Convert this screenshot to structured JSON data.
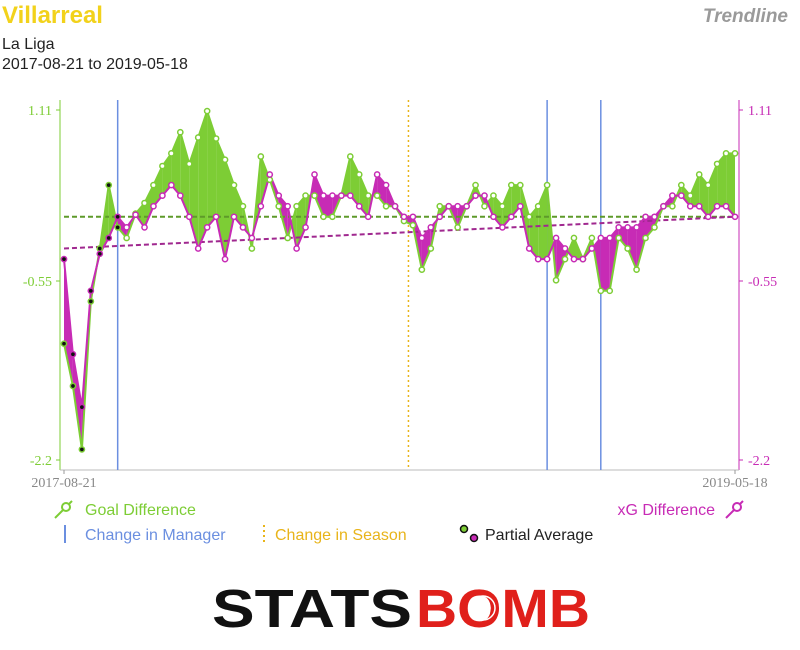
{
  "header": {
    "team": "Villarreal",
    "competition": "La Liga",
    "date_range": "2017-08-21 to 2019-05-18",
    "mode": "Trendline"
  },
  "colors": {
    "goal_diff": "#7dcd35",
    "xg_diff": "#c72bb5",
    "manager": "#6b8fe0",
    "season": "#e8b41a",
    "title": "#f2d21b",
    "logo_red": "#e0201b"
  },
  "legend": {
    "goal_difference": "Goal Difference",
    "xg_difference": "xG Difference",
    "change_manager": "Change in Manager",
    "change_season": "Change in Season",
    "partial_average": "Partial Average"
  },
  "logo": {
    "part1": "STATS",
    "part2": "BOMB"
  },
  "chart_data": {
    "type": "line",
    "ylim": [
      -2.2,
      1.11
    ],
    "y_ticks": [
      "1.11",
      "-0.55",
      "-2.2"
    ],
    "y_tick_values": [
      1.11,
      -0.55,
      -2.2
    ],
    "x_labels": [
      "2017-08-21",
      "2019-05-18"
    ],
    "match_count": 76,
    "partial_average_count": 7,
    "manager_change_indices": [
      6,
      54,
      60
    ],
    "season_change_index": 38.5,
    "series": [
      {
        "name": "Goal Difference",
        "values": [
          -1.1,
          -1.5,
          -2.1,
          -0.7,
          -0.2,
          0.4,
          0.0,
          -0.1,
          0.13,
          0.23,
          0.4,
          0.58,
          0.7,
          0.9,
          0.6,
          0.85,
          1.1,
          0.84,
          0.64,
          0.4,
          0.2,
          -0.2,
          0.67,
          0.45,
          0.2,
          -0.1,
          0.2,
          0.3,
          0.3,
          0.1,
          0.1,
          0.3,
          0.67,
          0.5,
          0.3,
          0.3,
          0.2,
          0.2,
          0.06,
          0.02,
          -0.4,
          -0.2,
          0.2,
          0.2,
          0.0,
          0.2,
          0.4,
          0.2,
          0.3,
          0.2,
          0.4,
          0.4,
          0.1,
          0.2,
          0.4,
          -0.5,
          -0.3,
          -0.1,
          -0.3,
          -0.1,
          -0.6,
          -0.6,
          -0.1,
          -0.2,
          -0.4,
          -0.1,
          0.0,
          0.2,
          0.2,
          0.4,
          0.3,
          0.5,
          0.4,
          0.6,
          0.7,
          0.7
        ]
      },
      {
        "name": "xG Difference",
        "values": [
          -0.3,
          -1.2,
          -1.7,
          -0.6,
          -0.25,
          -0.1,
          0.1,
          0.0,
          0.12,
          0.0,
          0.2,
          0.3,
          0.4,
          0.3,
          0.1,
          -0.2,
          0.0,
          0.1,
          -0.3,
          0.1,
          0.0,
          -0.1,
          0.2,
          0.5,
          0.3,
          0.2,
          -0.2,
          0.0,
          0.5,
          0.3,
          0.3,
          0.3,
          0.3,
          0.2,
          0.1,
          0.5,
          0.4,
          0.2,
          0.1,
          0.1,
          -0.1,
          0.0,
          0.1,
          0.2,
          0.2,
          0.2,
          0.3,
          0.3,
          0.1,
          0.0,
          0.1,
          0.2,
          -0.2,
          -0.3,
          -0.3,
          -0.1,
          -0.2,
          -0.3,
          -0.3,
          -0.2,
          -0.1,
          -0.1,
          0.0,
          0.0,
          0.0,
          0.1,
          0.1,
          0.2,
          0.3,
          0.3,
          0.2,
          0.2,
          0.1,
          0.2,
          0.2,
          0.1
        ]
      },
      {
        "name": "Goal Difference Trend",
        "values": [
          0.1,
          0.1
        ]
      },
      {
        "name": "xG Difference Trend",
        "values": [
          -0.2,
          0.1
        ]
      }
    ]
  }
}
